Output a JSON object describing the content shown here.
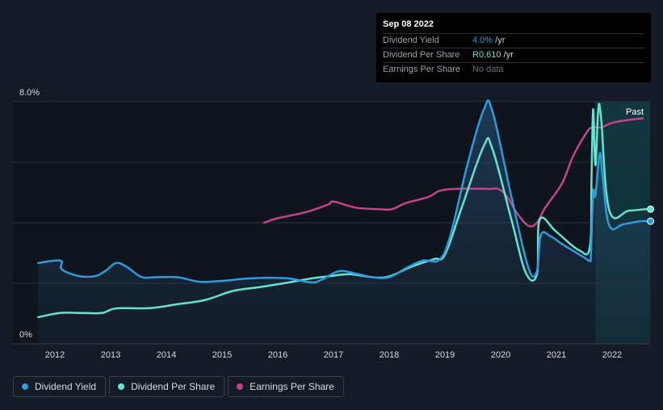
{
  "tooltip": {
    "date": "Sep 08 2022",
    "rows": [
      {
        "label": "Dividend Yield",
        "value": "4.0%",
        "unit": "/yr"
      },
      {
        "label": "Dividend Per Share",
        "value": "R0.610",
        "unit": "/yr"
      },
      {
        "label": "Earnings Per Share",
        "value": "No data",
        "unit": ""
      }
    ]
  },
  "legend": [
    {
      "label": "Dividend Yield",
      "color": "#2d9cdb"
    },
    {
      "label": "Dividend Per Share",
      "color": "#62e4cf"
    },
    {
      "label": "Earnings Per Share",
      "color": "#c2458a"
    }
  ],
  "past_label": "Past",
  "chart_data": {
    "type": "line",
    "y_top_label": "8.0%",
    "y_bottom_label": "0%",
    "ylim": [
      0,
      8.0
    ],
    "xlim": [
      2011.7,
      2022.69
    ],
    "x_ticks": [
      "2012",
      "2013",
      "2014",
      "2015",
      "2016",
      "2017",
      "2018",
      "2019",
      "2020",
      "2021",
      "2022"
    ],
    "gridlines": [
      0,
      2,
      4,
      6,
      8
    ],
    "past_region_start": 2021.7,
    "series": [
      {
        "name": "Dividend Yield",
        "color": "#2d9cdb",
        "filled": true,
        "points": [
          [
            2011.7,
            2.67
          ],
          [
            2012.1,
            2.75
          ],
          [
            2012.12,
            2.47
          ],
          [
            2012.4,
            2.25
          ],
          [
            2012.7,
            2.23
          ],
          [
            2012.9,
            2.4
          ],
          [
            2013.1,
            2.67
          ],
          [
            2013.3,
            2.53
          ],
          [
            2013.55,
            2.21
          ],
          [
            2013.8,
            2.2
          ],
          [
            2014.2,
            2.2
          ],
          [
            2014.6,
            2.05
          ],
          [
            2015.0,
            2.08
          ],
          [
            2015.4,
            2.15
          ],
          [
            2015.8,
            2.18
          ],
          [
            2016.2,
            2.16
          ],
          [
            2016.6,
            2.03
          ],
          [
            2016.8,
            2.13
          ],
          [
            2017.1,
            2.4
          ],
          [
            2017.4,
            2.32
          ],
          [
            2017.7,
            2.2
          ],
          [
            2018.0,
            2.2
          ],
          [
            2018.3,
            2.5
          ],
          [
            2018.6,
            2.75
          ],
          [
            2018.9,
            2.78
          ],
          [
            2019.1,
            3.6
          ],
          [
            2019.4,
            5.9
          ],
          [
            2019.7,
            7.75
          ],
          [
            2019.85,
            7.7
          ],
          [
            2020.2,
            4.8
          ],
          [
            2020.5,
            2.5
          ],
          [
            2020.65,
            2.4
          ],
          [
            2020.72,
            3.6
          ],
          [
            2020.9,
            3.55
          ],
          [
            2021.1,
            3.3
          ],
          [
            2021.5,
            2.85
          ],
          [
            2021.6,
            2.75
          ],
          [
            2021.62,
            3.0
          ],
          [
            2021.66,
            5.0
          ],
          [
            2021.7,
            4.9
          ],
          [
            2021.78,
            6.3
          ],
          [
            2021.83,
            5.5
          ],
          [
            2021.95,
            3.9
          ],
          [
            2022.2,
            3.95
          ],
          [
            2022.5,
            4.05
          ],
          [
            2022.69,
            4.05
          ]
        ]
      },
      {
        "name": "Dividend Per Share",
        "color": "#62e4cf",
        "filled": false,
        "points": [
          [
            2011.7,
            0.88
          ],
          [
            2012.1,
            1.02
          ],
          [
            2012.5,
            1.02
          ],
          [
            2012.85,
            1.02
          ],
          [
            2013.1,
            1.17
          ],
          [
            2013.7,
            1.18
          ],
          [
            2014.2,
            1.31
          ],
          [
            2014.7,
            1.45
          ],
          [
            2015.2,
            1.75
          ],
          [
            2015.7,
            1.88
          ],
          [
            2016.2,
            2.03
          ],
          [
            2016.6,
            2.16
          ],
          [
            2017.0,
            2.25
          ],
          [
            2017.3,
            2.3
          ],
          [
            2017.7,
            2.2
          ],
          [
            2018.0,
            2.23
          ],
          [
            2018.4,
            2.55
          ],
          [
            2018.8,
            2.8
          ],
          [
            2019.0,
            2.95
          ],
          [
            2019.3,
            4.5
          ],
          [
            2019.7,
            6.55
          ],
          [
            2019.85,
            6.45
          ],
          [
            2020.2,
            4.05
          ],
          [
            2020.45,
            2.35
          ],
          [
            2020.65,
            2.3
          ],
          [
            2020.7,
            4.1
          ],
          [
            2021.0,
            3.7
          ],
          [
            2021.4,
            3.1
          ],
          [
            2021.6,
            3.2
          ],
          [
            2021.63,
            5.5
          ],
          [
            2021.66,
            7.75
          ],
          [
            2021.7,
            5.9
          ],
          [
            2021.75,
            7.7
          ],
          [
            2021.8,
            7.5
          ],
          [
            2021.95,
            4.4
          ],
          [
            2022.3,
            4.4
          ],
          [
            2022.6,
            4.45
          ],
          [
            2022.69,
            4.45
          ]
        ]
      },
      {
        "name": "Earnings Per Share",
        "color": "#c2458a",
        "filled": false,
        "points": [
          [
            2015.75,
            4.0
          ],
          [
            2016.0,
            4.15
          ],
          [
            2016.5,
            4.35
          ],
          [
            2016.9,
            4.6
          ],
          [
            2017.0,
            4.7
          ],
          [
            2017.4,
            4.5
          ],
          [
            2017.8,
            4.45
          ],
          [
            2018.05,
            4.45
          ],
          [
            2018.3,
            4.65
          ],
          [
            2018.7,
            4.85
          ],
          [
            2018.9,
            5.05
          ],
          [
            2019.2,
            5.12
          ],
          [
            2019.8,
            5.12
          ],
          [
            2019.95,
            5.12
          ],
          [
            2020.1,
            4.9
          ],
          [
            2020.3,
            4.3
          ],
          [
            2020.5,
            3.9
          ],
          [
            2020.65,
            4.0
          ],
          [
            2020.8,
            4.5
          ],
          [
            2021.1,
            5.3
          ],
          [
            2021.3,
            6.2
          ],
          [
            2021.55,
            7.0
          ],
          [
            2021.65,
            7.15
          ],
          [
            2021.8,
            7.15
          ],
          [
            2022.0,
            7.3
          ],
          [
            2022.3,
            7.4
          ],
          [
            2022.55,
            7.45
          ]
        ]
      }
    ]
  }
}
